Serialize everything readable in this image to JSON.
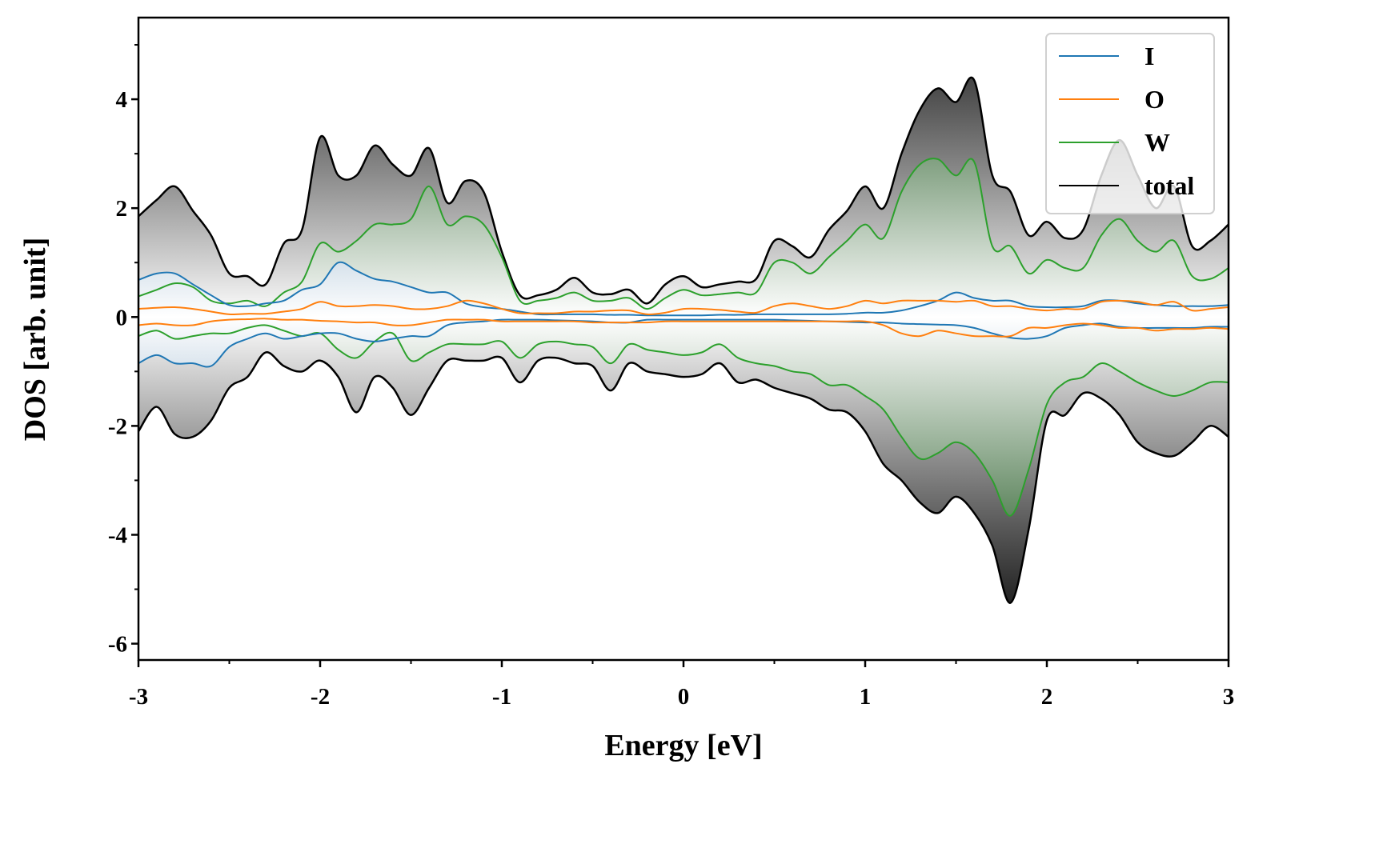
{
  "chart_data": {
    "type": "area",
    "title": "",
    "xlabel": "Energy [eV]",
    "ylabel": "DOS [arb. unit]",
    "xlim": [
      -3,
      3
    ],
    "ylim": [
      -6.3,
      5.5
    ],
    "x_start": -3,
    "x_step": 0.1,
    "xticks": [
      "-3",
      "-2",
      "-1",
      "0",
      "1",
      "2",
      "3"
    ],
    "xtick_values": [
      -3,
      -2,
      -1,
      0,
      1,
      2,
      3
    ],
    "yticks": [
      "-6",
      "-4",
      "-2",
      "0",
      "2",
      "4"
    ],
    "ytick_values": [
      -6,
      -4,
      -2,
      0,
      2,
      4
    ],
    "grid": false,
    "legend_position": "top-right",
    "series": [
      {
        "name": "total",
        "label": "total",
        "color": "#000000",
        "fill": "#000000",
        "up": [
          1.85,
          2.15,
          2.4,
          1.95,
          1.5,
          0.8,
          0.75,
          0.6,
          1.35,
          1.6,
          3.3,
          2.6,
          2.6,
          3.15,
          2.8,
          2.6,
          3.1,
          2.1,
          2.5,
          2.3,
          1.2,
          0.4,
          0.4,
          0.5,
          0.72,
          0.45,
          0.42,
          0.5,
          0.25,
          0.6,
          0.75,
          0.55,
          0.6,
          0.65,
          0.7,
          1.4,
          1.3,
          1.1,
          1.6,
          1.95,
          2.4,
          2.0,
          3.0,
          3.8,
          4.2,
          3.95,
          4.35,
          2.6,
          2.3,
          1.5,
          1.75,
          1.45,
          1.6,
          2.6,
          3.25,
          2.6,
          2.0,
          2.4,
          1.3,
          1.4,
          1.7
        ],
        "down": [
          -2.1,
          -1.65,
          -2.15,
          -2.2,
          -1.9,
          -1.3,
          -1.1,
          -0.65,
          -0.9,
          -1.0,
          -0.8,
          -1.1,
          -1.75,
          -1.1,
          -1.3,
          -1.8,
          -1.3,
          -0.8,
          -0.8,
          -0.8,
          -0.75,
          -1.2,
          -0.8,
          -0.75,
          -0.85,
          -0.9,
          -1.35,
          -0.85,
          -1.0,
          -1.05,
          -1.1,
          -1.05,
          -0.85,
          -1.2,
          -1.15,
          -1.3,
          -1.4,
          -1.5,
          -1.7,
          -1.75,
          -2.1,
          -2.7,
          -3.0,
          -3.4,
          -3.6,
          -3.3,
          -3.6,
          -4.2,
          -5.25,
          -3.9,
          -1.9,
          -1.8,
          -1.4,
          -1.5,
          -1.8,
          -2.3,
          -2.5,
          -2.55,
          -2.3,
          -2.0,
          -2.2
        ]
      },
      {
        "name": "W",
        "label": "W",
        "color": "#2ca02c",
        "fill": "#0f4a0f",
        "up": [
          0.38,
          0.5,
          0.62,
          0.55,
          0.3,
          0.25,
          0.3,
          0.2,
          0.45,
          0.65,
          1.35,
          1.2,
          1.4,
          1.7,
          1.7,
          1.8,
          2.4,
          1.7,
          1.85,
          1.7,
          1.1,
          0.3,
          0.3,
          0.35,
          0.45,
          0.3,
          0.3,
          0.35,
          0.15,
          0.35,
          0.5,
          0.4,
          0.42,
          0.45,
          0.45,
          1.0,
          1.0,
          0.8,
          1.1,
          1.4,
          1.7,
          1.45,
          2.3,
          2.8,
          2.9,
          2.6,
          2.85,
          1.3,
          1.3,
          0.8,
          1.05,
          0.9,
          0.9,
          1.5,
          1.8,
          1.4,
          1.2,
          1.4,
          0.75,
          0.7,
          0.9
        ],
        "down": [
          -0.35,
          -0.25,
          -0.4,
          -0.35,
          -0.3,
          -0.3,
          -0.2,
          -0.15,
          -0.25,
          -0.35,
          -0.3,
          -0.6,
          -0.75,
          -0.45,
          -0.3,
          -0.8,
          -0.65,
          -0.5,
          -0.5,
          -0.5,
          -0.45,
          -0.75,
          -0.5,
          -0.45,
          -0.5,
          -0.55,
          -0.85,
          -0.5,
          -0.6,
          -0.65,
          -0.7,
          -0.65,
          -0.5,
          -0.75,
          -0.85,
          -0.9,
          -1.0,
          -1.05,
          -1.25,
          -1.25,
          -1.45,
          -1.7,
          -2.2,
          -2.6,
          -2.5,
          -2.3,
          -2.5,
          -3.0,
          -3.65,
          -2.8,
          -1.6,
          -1.2,
          -1.1,
          -0.85,
          -1.0,
          -1.2,
          -1.35,
          -1.45,
          -1.35,
          -1.2,
          -1.2
        ]
      },
      {
        "name": "I",
        "label": "I",
        "color": "#1f77b4",
        "fill": "#1f5f94",
        "up": [
          0.68,
          0.8,
          0.8,
          0.6,
          0.4,
          0.22,
          0.2,
          0.25,
          0.3,
          0.5,
          0.6,
          1.0,
          0.85,
          0.7,
          0.65,
          0.55,
          0.45,
          0.45,
          0.25,
          0.18,
          0.15,
          0.1,
          0.05,
          0.05,
          0.05,
          0.05,
          0.04,
          0.04,
          0.03,
          0.03,
          0.03,
          0.03,
          0.04,
          0.04,
          0.05,
          0.05,
          0.05,
          0.05,
          0.05,
          0.06,
          0.08,
          0.08,
          0.12,
          0.2,
          0.3,
          0.45,
          0.35,
          0.3,
          0.3,
          0.2,
          0.18,
          0.18,
          0.2,
          0.3,
          0.3,
          0.25,
          0.22,
          0.2,
          0.2,
          0.2,
          0.22
        ],
        "down": [
          -0.85,
          -0.7,
          -0.85,
          -0.85,
          -0.9,
          -0.55,
          -0.4,
          -0.3,
          -0.4,
          -0.35,
          -0.3,
          -0.3,
          -0.4,
          -0.45,
          -0.4,
          -0.35,
          -0.35,
          -0.15,
          -0.1,
          -0.08,
          -0.05,
          -0.05,
          -0.05,
          -0.06,
          -0.07,
          -0.08,
          -0.1,
          -0.1,
          -0.05,
          -0.05,
          -0.05,
          -0.05,
          -0.05,
          -0.05,
          -0.05,
          -0.05,
          -0.06,
          -0.07,
          -0.08,
          -0.09,
          -0.1,
          -0.1,
          -0.12,
          -0.13,
          -0.14,
          -0.15,
          -0.2,
          -0.3,
          -0.38,
          -0.4,
          -0.35,
          -0.2,
          -0.15,
          -0.12,
          -0.18,
          -0.2,
          -0.2,
          -0.2,
          -0.2,
          -0.18,
          -0.18
        ]
      },
      {
        "name": "O",
        "label": "O",
        "color": "#ff7f0e",
        "fill": "#c08a40",
        "up": [
          0.15,
          0.17,
          0.18,
          0.15,
          0.1,
          0.05,
          0.06,
          0.06,
          0.1,
          0.15,
          0.28,
          0.2,
          0.2,
          0.22,
          0.2,
          0.15,
          0.15,
          0.2,
          0.3,
          0.25,
          0.15,
          0.07,
          0.07,
          0.07,
          0.1,
          0.1,
          0.12,
          0.12,
          0.05,
          0.08,
          0.15,
          0.15,
          0.13,
          0.1,
          0.08,
          0.2,
          0.25,
          0.2,
          0.15,
          0.2,
          0.3,
          0.25,
          0.3,
          0.3,
          0.3,
          0.28,
          0.3,
          0.2,
          0.2,
          0.15,
          0.12,
          0.15,
          0.15,
          0.28,
          0.3,
          0.28,
          0.22,
          0.28,
          0.12,
          0.15,
          0.18
        ],
        "down": [
          -0.15,
          -0.12,
          -0.15,
          -0.15,
          -0.08,
          -0.05,
          -0.04,
          -0.03,
          -0.05,
          -0.05,
          -0.07,
          -0.08,
          -0.1,
          -0.1,
          -0.15,
          -0.15,
          -0.1,
          -0.05,
          -0.05,
          -0.05,
          -0.08,
          -0.08,
          -0.08,
          -0.08,
          -0.08,
          -0.1,
          -0.1,
          -0.1,
          -0.1,
          -0.08,
          -0.08,
          -0.08,
          -0.08,
          -0.08,
          -0.08,
          -0.08,
          -0.08,
          -0.08,
          -0.08,
          -0.08,
          -0.08,
          -0.15,
          -0.3,
          -0.35,
          -0.25,
          -0.3,
          -0.35,
          -0.35,
          -0.35,
          -0.2,
          -0.2,
          -0.15,
          -0.12,
          -0.15,
          -0.2,
          -0.2,
          -0.25,
          -0.22,
          -0.22,
          -0.2,
          -0.22
        ]
      }
    ],
    "legend_order": [
      "I",
      "O",
      "W",
      "total"
    ]
  }
}
